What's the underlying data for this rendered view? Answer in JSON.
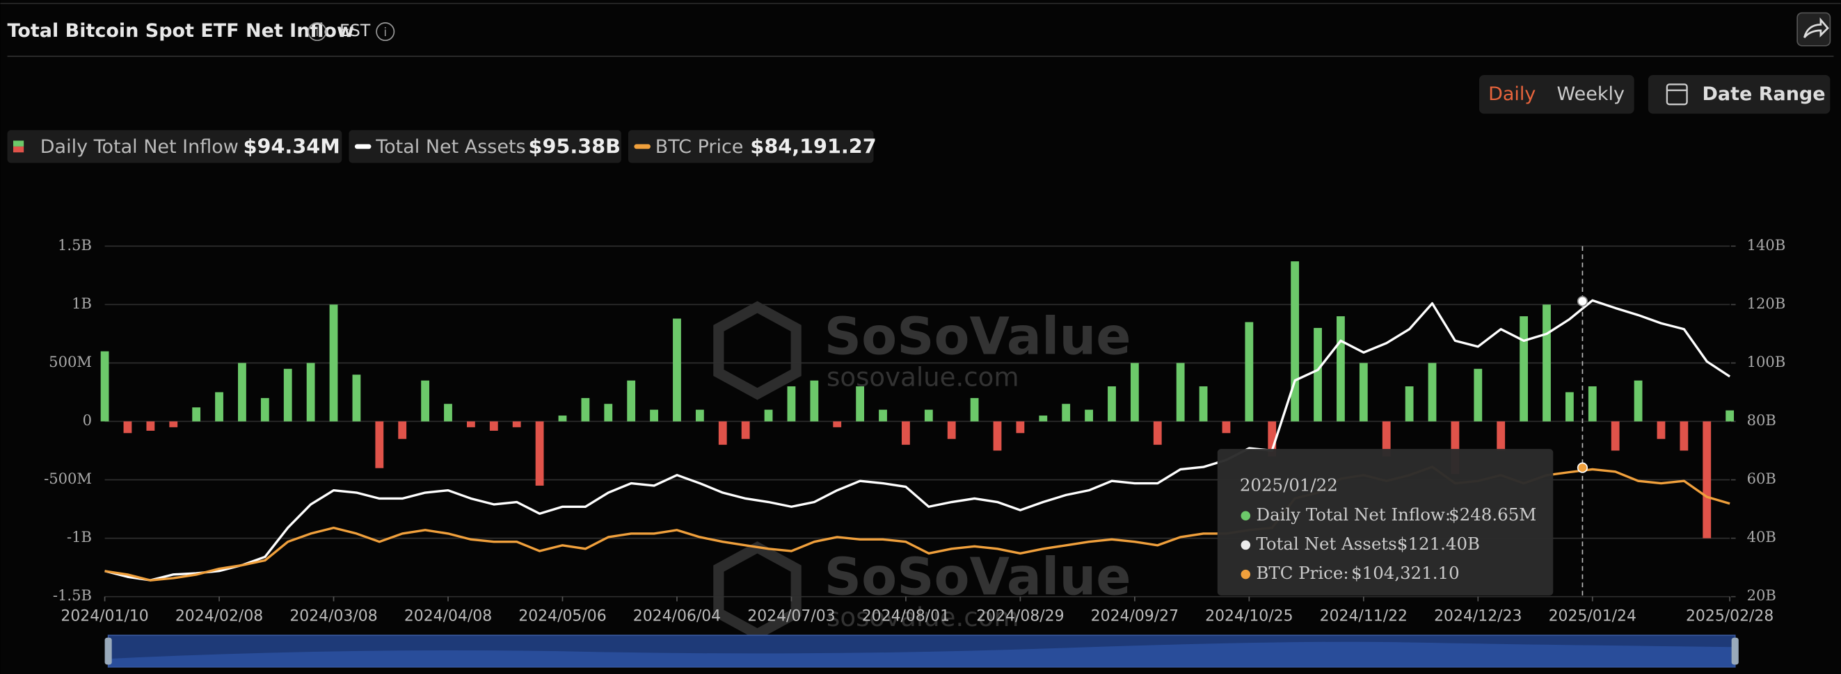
{
  "header": {
    "title": "Total Bitcoin Spot ETF Net Inflow",
    "timezone": "EST",
    "tabs": [
      "Daily",
      "Weekly"
    ],
    "date_range": "Date Range"
  },
  "summary": [
    {
      "name": "Daily Total Net Inflow",
      "value": "$94.34M"
    },
    {
      "name": "Total Net Assets",
      "value": "$95.38B"
    },
    {
      "name": "BTC Price",
      "value": "$84,191.27"
    }
  ],
  "watermark": {
    "brand": "SoSoValue",
    "url": "sosovalue.com"
  },
  "tooltip": {
    "date": "2025/01/22",
    "items": [
      {
        "label": "Daily Total Net Inflow:",
        "value": "$248.65M"
      },
      {
        "label": "Total Net Assets:",
        "value": "$121.40B"
      },
      {
        "label": "BTC Price:",
        "value": "$104,321.10"
      }
    ]
  },
  "chart_data": {
    "type": "bar",
    "categories": [
      "2024/01/10",
      null,
      null,
      null,
      null,
      "2024/02/08",
      null,
      null,
      null,
      null,
      "2024/03/08",
      null,
      null,
      null,
      null,
      "2024/04/08",
      null,
      null,
      null,
      null,
      "2024/05/06",
      null,
      null,
      null,
      null,
      "2024/06/04",
      null,
      null,
      null,
      null,
      "2024/07/03",
      null,
      null,
      null,
      null,
      "2024/08/01",
      null,
      null,
      null,
      null,
      "2024/08/29",
      null,
      null,
      null,
      null,
      "2024/09/27",
      null,
      null,
      null,
      null,
      "2024/10/25",
      null,
      null,
      null,
      null,
      "2024/11/22",
      null,
      null,
      null,
      null,
      "2024/12/23",
      null,
      null,
      null,
      null,
      "2025/01/24",
      null,
      null,
      null,
      null,
      null,
      "2025/02/28"
    ],
    "series": [
      {
        "name": "Daily Total Net Inflow",
        "type": "bar",
        "color": "#6cc96a",
        "negative_color": "#e0534a",
        "values": [
          600,
          -100,
          -80,
          -50,
          120,
          250,
          500,
          200,
          450,
          500,
          1000,
          400,
          -400,
          -150,
          350,
          150,
          -50,
          -80,
          -50,
          -550,
          50,
          200,
          150,
          350,
          100,
          880,
          100,
          -200,
          -150,
          100,
          300,
          350,
          -50,
          300,
          100,
          -200,
          100,
          -150,
          200,
          -250,
          -100,
          50,
          150,
          100,
          300,
          500,
          -200,
          500,
          300,
          -100,
          850,
          -300,
          1370,
          800,
          900,
          500,
          -300,
          300,
          500,
          -450,
          450,
          -250,
          900,
          1000,
          250,
          300,
          -250,
          350,
          -150,
          -250,
          -1000,
          94.34
        ]
      },
      {
        "name": "Total Net Assets",
        "type": "line",
        "axis": "y2",
        "color": "#ffffff",
        "values": [
          28.8,
          26.8,
          25.6,
          27.6,
          28,
          28.8,
          30.8,
          33.6,
          43.6,
          51.6,
          56.4,
          55.6,
          53.6,
          53.6,
          55.6,
          56.4,
          53.6,
          51.6,
          52.4,
          48.4,
          50.8,
          50.8,
          55.6,
          58.8,
          58,
          61.6,
          58.8,
          55.6,
          53.6,
          52.4,
          50.8,
          52.4,
          56.4,
          59.6,
          58.8,
          57.6,
          50.8,
          52.4,
          53.6,
          52.4,
          49.6,
          52.4,
          54.8,
          56.4,
          59.6,
          58.8,
          58.8,
          63.6,
          64.4,
          66.8,
          70.8,
          70,
          94,
          97.6,
          107.6,
          103.6,
          106.8,
          111.6,
          120.4,
          107.6,
          105.6,
          111.6,
          107.6,
          110,
          115,
          121.4,
          118.8,
          116.4,
          113.6,
          111.6,
          100.5,
          95.38
        ]
      },
      {
        "name": "BTC Price",
        "type": "line",
        "axis": "y3",
        "color": "#f0a03c",
        "values": [
          46000,
          44000,
          40700,
          42000,
          44000,
          47300,
          49300,
          52000,
          62600,
          67200,
          70500,
          67200,
          62600,
          67200,
          69200,
          67200,
          63900,
          62600,
          62600,
          57300,
          60600,
          58600,
          65200,
          67200,
          67200,
          69200,
          65200,
          62600,
          60600,
          58600,
          57300,
          62600,
          65200,
          63900,
          63900,
          62600,
          56000,
          58600,
          60000,
          58600,
          56000,
          58600,
          60600,
          62600,
          63900,
          62600,
          60600,
          65200,
          67200,
          67200,
          69200,
          70500,
          87100,
          90400,
          98300,
          100300,
          97000,
          100300,
          105000,
          95700,
          97000,
          100300,
          95700,
          100300,
          102000,
          103600,
          102300,
          97000,
          95700,
          97000,
          88000,
          84191.27
        ]
      }
    ],
    "ylim": [
      -1500,
      1500
    ],
    "yticks": [
      {
        "value": -1500,
        "label": "-1.5B"
      },
      {
        "value": -1000,
        "label": "-1B"
      },
      {
        "value": -500,
        "label": "-500M"
      },
      0,
      {
        "value": 500,
        "label": "500M"
      },
      {
        "value": 1000,
        "label": "1B"
      },
      {
        "value": 1500,
        "label": "1.5B"
      }
    ],
    "y2lim": [
      20,
      140
    ],
    "y2ticks": [
      {
        "value": 20,
        "label": "20B"
      },
      {
        "value": 40,
        "label": "40B"
      },
      {
        "value": 60,
        "label": "60B"
      },
      {
        "value": 80,
        "label": "80B"
      },
      {
        "value": 100,
        "label": "100B"
      },
      {
        "value": 120,
        "label": "120B"
      },
      {
        "value": 140,
        "label": "140B"
      }
    ],
    "y3lim": [
      31500,
      230000
    ],
    "grid": true
  }
}
